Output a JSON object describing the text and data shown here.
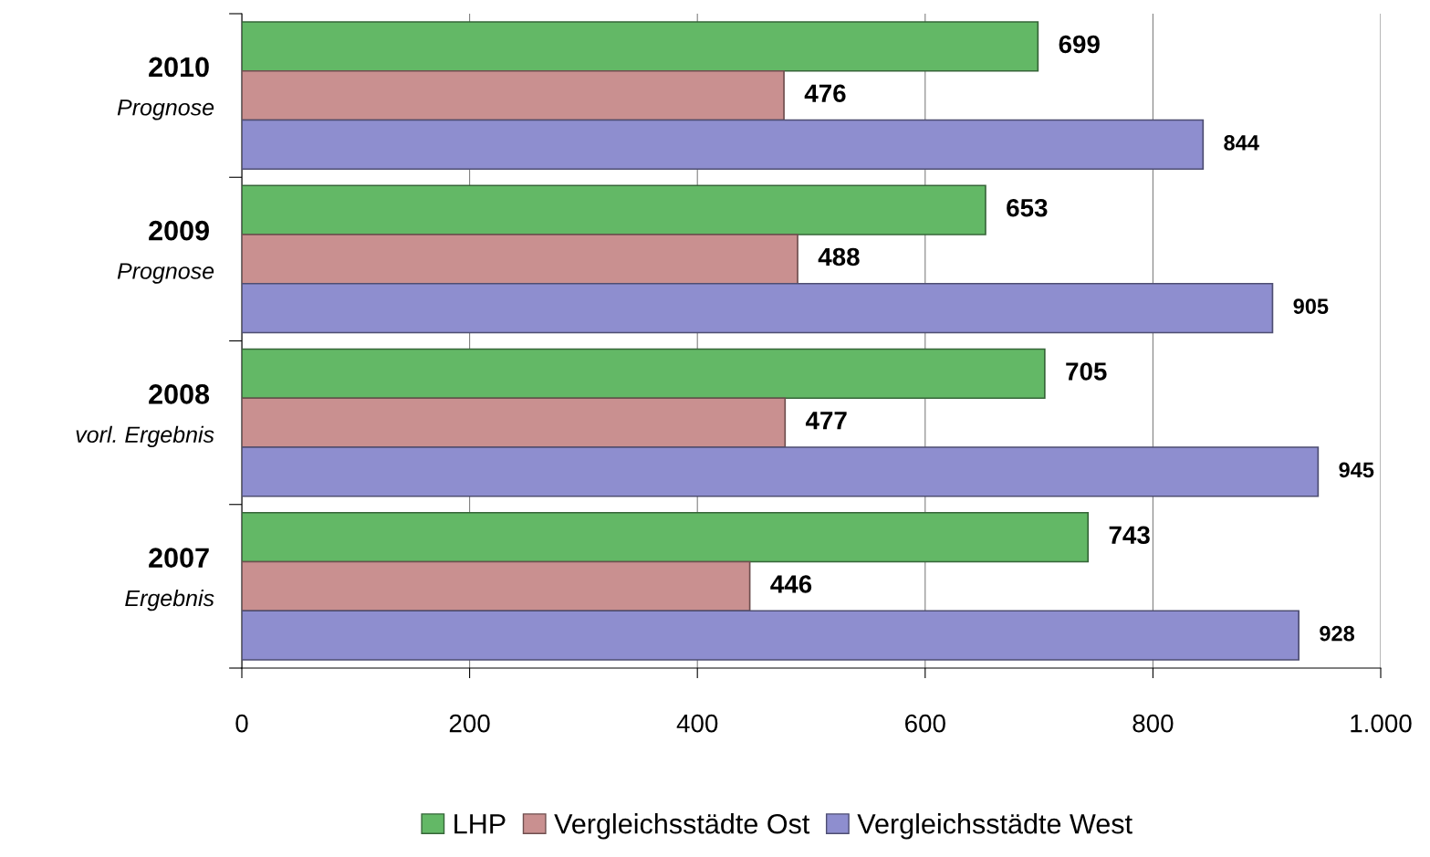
{
  "chart_data": {
    "type": "bar",
    "orientation": "horizontal",
    "categories": [
      "2010\nPrognose",
      "2009\nPrognose",
      "2008\nvorl. Ergebnis",
      "2007\nErgebnis"
    ],
    "series": [
      {
        "name": "LHP",
        "color": "#63b866",
        "values": [
          699,
          653,
          705,
          743
        ]
      },
      {
        "name": "Vergleichsstädte Ost",
        "color": "#c99090",
        "values": [
          476,
          488,
          477,
          446
        ]
      },
      {
        "name": "Vergleichsstädte West",
        "color": "#8e8ecf",
        "values": [
          844,
          905,
          945,
          928
        ]
      }
    ],
    "xlim": [
      0,
      1000
    ],
    "xticks": [
      0,
      200,
      400,
      600,
      800,
      {
        "value": 1000,
        "label": "1.000"
      }
    ],
    "grid": "x",
    "legend": "bottom",
    "data_labels": true
  }
}
